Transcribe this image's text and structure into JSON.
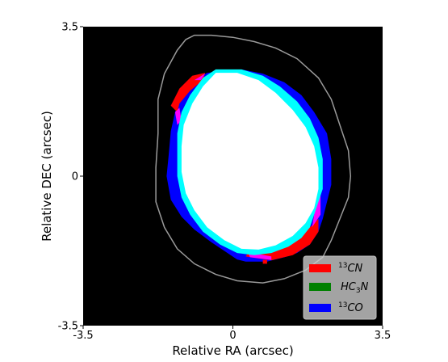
{
  "chart_data": {
    "type": "heatmap",
    "title": "",
    "xlabel": "Relative RA (arcsec)",
    "ylabel": "Relative DEC (arcsec)",
    "xlim": [
      -3.5,
      3.5
    ],
    "ylim": [
      -3.5,
      3.5
    ],
    "x_ticks": [
      {
        "value": -3.5,
        "label": "-3.5"
      },
      {
        "value": 0,
        "label": "0"
      },
      {
        "value": 3.5,
        "label": "3.5"
      }
    ],
    "y_ticks": [
      {
        "value": -3.5,
        "label": "-3.5"
      },
      {
        "value": 0,
        "label": "0"
      },
      {
        "value": 3.5,
        "label": "3.5"
      }
    ],
    "grid": false,
    "background_color": "#000000",
    "legend_placement": "lower-right",
    "legend": [
      {
        "sup": "13",
        "text": "CN",
        "color": "#ff0000"
      },
      {
        "sub_prefix": "HC",
        "sub": "3",
        "text": "N",
        "color": "#008000"
      },
      {
        "sup": "13",
        "text": "CO",
        "color": "#0000ff"
      }
    ],
    "colors": {
      "cn": "#ff0000",
      "co": "#0000ff",
      "cn_co_overlap": "#ff00ff",
      "co_hc3n_overlap": "#00ffff",
      "all_overlap": "#ffffff",
      "contour": "#9a9a9a"
    },
    "contour": [
      [
        -0.9,
        3.3
      ],
      [
        -0.5,
        3.3
      ],
      [
        0.0,
        3.25
      ],
      [
        0.5,
        3.15
      ],
      [
        1.0,
        3.0
      ],
      [
        1.5,
        2.75
      ],
      [
        2.0,
        2.3
      ],
      [
        2.3,
        1.8
      ],
      [
        2.5,
        1.2
      ],
      [
        2.7,
        0.6
      ],
      [
        2.75,
        0.0
      ],
      [
        2.7,
        -0.5
      ],
      [
        2.5,
        -1.0
      ],
      [
        2.3,
        -1.5
      ],
      [
        2.1,
        -1.9
      ],
      [
        1.7,
        -2.2
      ],
      [
        1.2,
        -2.4
      ],
      [
        0.7,
        -2.5
      ],
      [
        0.1,
        -2.45
      ],
      [
        -0.4,
        -2.3
      ],
      [
        -0.9,
        -2.05
      ],
      [
        -1.3,
        -1.7
      ],
      [
        -1.6,
        -1.2
      ],
      [
        -1.8,
        -0.6
      ],
      [
        -1.8,
        0.2
      ],
      [
        -1.75,
        1.0
      ],
      [
        -1.75,
        1.8
      ],
      [
        -1.6,
        2.4
      ],
      [
        -1.3,
        2.95
      ],
      [
        -1.1,
        3.2
      ]
    ],
    "regions": {
      "co_outer": [
        [
          0.2,
          2.5
        ],
        [
          0.7,
          2.4
        ],
        [
          1.2,
          2.2
        ],
        [
          1.6,
          1.9
        ],
        [
          1.9,
          1.5
        ],
        [
          2.2,
          1.0
        ],
        [
          2.3,
          0.4
        ],
        [
          2.3,
          -0.2
        ],
        [
          2.2,
          -0.6
        ],
        [
          2.1,
          -1.0
        ],
        [
          2.0,
          -1.3
        ],
        [
          1.8,
          -1.6
        ],
        [
          1.5,
          -1.8
        ],
        [
          1.2,
          -1.9
        ],
        [
          0.8,
          -2.0
        ],
        [
          0.3,
          -2.0
        ],
        [
          0.1,
          -1.95
        ],
        [
          -0.2,
          -1.75
        ],
        [
          -0.5,
          -1.55
        ],
        [
          -0.9,
          -1.25
        ],
        [
          -1.2,
          -0.95
        ],
        [
          -1.45,
          -0.55
        ],
        [
          -1.55,
          0.0
        ],
        [
          -1.5,
          0.5
        ],
        [
          -1.45,
          1.05
        ],
        [
          -1.35,
          1.5
        ],
        [
          -1.2,
          1.9
        ],
        [
          -1.0,
          2.2
        ],
        [
          -0.6,
          2.42
        ]
      ],
      "cn_patches": [
        [
          [
            -1.45,
            1.65
          ],
          [
            -1.25,
            2.05
          ],
          [
            -0.95,
            2.35
          ],
          [
            -0.65,
            2.42
          ],
          [
            -0.7,
            2.25
          ],
          [
            -1.0,
            2.0
          ],
          [
            -1.25,
            1.7
          ],
          [
            -1.3,
            1.5
          ]
        ],
        [
          [
            0.3,
            -1.88
          ],
          [
            0.9,
            -1.97
          ],
          [
            1.4,
            -1.85
          ],
          [
            1.8,
            -1.6
          ],
          [
            2.0,
            -1.3
          ],
          [
            2.0,
            -1.0
          ],
          [
            1.8,
            -1.2
          ],
          [
            1.5,
            -1.5
          ],
          [
            1.1,
            -1.72
          ],
          [
            0.6,
            -1.82
          ],
          [
            0.35,
            -1.8
          ]
        ],
        [
          [
            0.7,
            -1.96
          ],
          [
            0.8,
            -1.96
          ],
          [
            0.8,
            -2.05
          ],
          [
            0.7,
            -2.05
          ]
        ]
      ],
      "magenta_patches": [
        [
          [
            -1.35,
            1.5
          ],
          [
            -1.25,
            1.6
          ],
          [
            -1.2,
            1.3
          ],
          [
            -1.3,
            1.2
          ]
        ],
        [
          [
            -0.9,
            2.25
          ],
          [
            -0.65,
            2.4
          ],
          [
            -0.75,
            2.25
          ]
        ],
        [
          [
            0.35,
            -1.78
          ],
          [
            0.9,
            -1.88
          ],
          [
            0.9,
            -1.96
          ],
          [
            0.4,
            -1.9
          ]
        ],
        [
          [
            1.85,
            -1.2
          ],
          [
            2.05,
            -0.9
          ],
          [
            2.05,
            -0.4
          ],
          [
            1.95,
            -0.4
          ],
          [
            1.9,
            -0.9
          ]
        ],
        [
          [
            -1.0,
            -0.7
          ],
          [
            -0.9,
            -0.7
          ],
          [
            -0.9,
            -0.8
          ],
          [
            -1.0,
            -0.8
          ]
        ]
      ],
      "cyan_band": [
        [
          -0.4,
          2.5
        ],
        [
          0.2,
          2.5
        ],
        [
          0.7,
          2.35
        ],
        [
          1.1,
          2.1
        ],
        [
          1.5,
          1.75
        ],
        [
          1.8,
          1.35
        ],
        [
          2.0,
          0.9
        ],
        [
          2.1,
          0.4
        ],
        [
          2.1,
          -0.3
        ],
        [
          2.0,
          -0.6
        ],
        [
          1.9,
          -0.9
        ],
        [
          1.8,
          -1.2
        ],
        [
          1.6,
          -1.45
        ],
        [
          1.3,
          -1.65
        ],
        [
          0.9,
          -1.8
        ],
        [
          0.5,
          -1.85
        ],
        [
          0.1,
          -1.8
        ],
        [
          -0.3,
          -1.6
        ],
        [
          -0.7,
          -1.3
        ],
        [
          -1.0,
          -0.9
        ],
        [
          -1.2,
          -0.5
        ],
        [
          -1.3,
          0.0
        ],
        [
          -1.3,
          0.5
        ],
        [
          -1.3,
          1.0
        ],
        [
          -1.2,
          1.5
        ],
        [
          -1.0,
          1.9
        ],
        [
          -0.7,
          2.3
        ]
      ],
      "white_core": [
        [
          -0.4,
          2.42
        ],
        [
          0.1,
          2.42
        ],
        [
          0.6,
          2.25
        ],
        [
          1.0,
          1.95
        ],
        [
          1.4,
          1.55
        ],
        [
          1.7,
          1.15
        ],
        [
          1.9,
          0.7
        ],
        [
          2.0,
          0.2
        ],
        [
          2.0,
          -0.3
        ],
        [
          1.9,
          -0.75
        ],
        [
          1.7,
          -1.1
        ],
        [
          1.4,
          -1.4
        ],
        [
          1.0,
          -1.62
        ],
        [
          0.6,
          -1.72
        ],
        [
          0.2,
          -1.7
        ],
        [
          -0.2,
          -1.5
        ],
        [
          -0.6,
          -1.2
        ],
        [
          -0.9,
          -0.8
        ],
        [
          -1.1,
          -0.4
        ],
        [
          -1.2,
          0.1
        ],
        [
          -1.2,
          0.7
        ],
        [
          -1.15,
          1.2
        ],
        [
          -0.95,
          1.7
        ],
        [
          -0.7,
          2.1
        ]
      ]
    }
  }
}
